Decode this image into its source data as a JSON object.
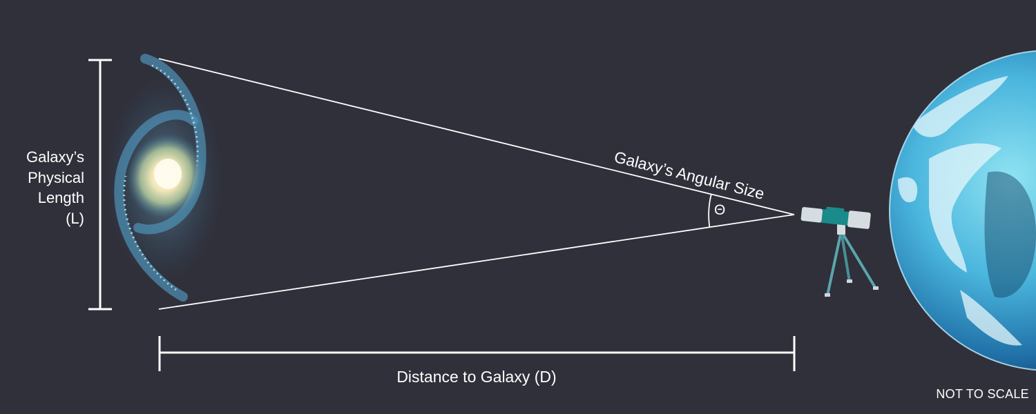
{
  "labels": {
    "length": [
      "Galaxy’s",
      "Physical",
      "Length",
      "(L)"
    ],
    "distance": "Distance to Galaxy (D)",
    "angular": "Galaxy’s Angular Size",
    "theta": "Θ",
    "note": "NOT TO SCALE"
  },
  "colors": {
    "background": "#30303a",
    "lines": "#ffffff",
    "telescope": "#1a8a8a",
    "earth": "#5cc2e0"
  },
  "icons": [
    "galaxy-icon",
    "telescope-icon",
    "earth-icon"
  ]
}
